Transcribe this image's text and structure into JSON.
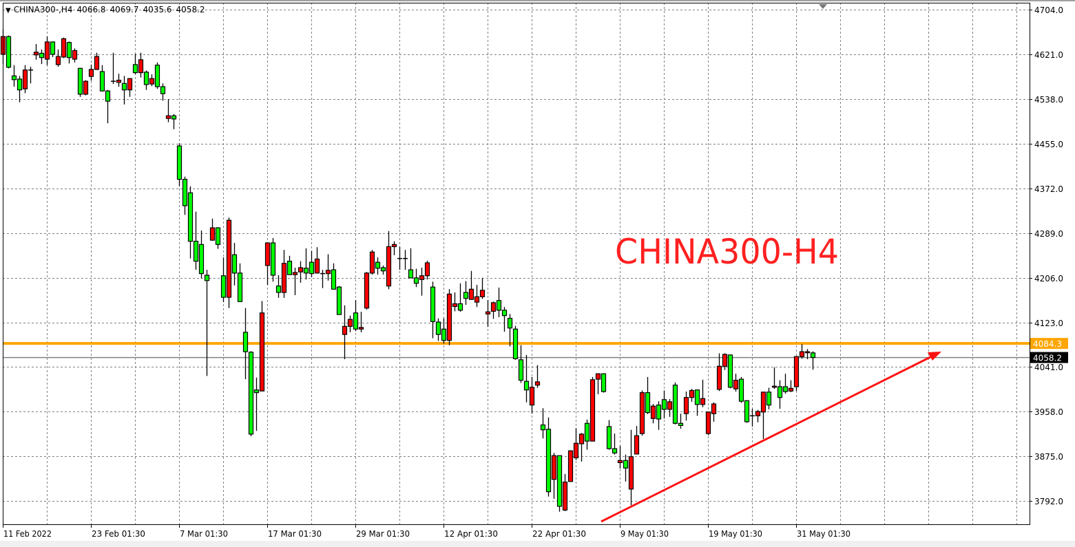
{
  "header": {
    "symbol": "CHINA300-,H4",
    "open": "4066.8",
    "high": "4069.7",
    "low": "4035.6",
    "close": "4058.2",
    "menu_icon": "triangle-down-icon"
  },
  "annotation": {
    "text": "CHINA300-H4",
    "color": "#FF2020"
  },
  "colors": {
    "bull": "#FF0000",
    "bear": "#00FF00",
    "outline": "#000000",
    "grid": "#7f7f7f",
    "level_line": "#FFA500",
    "bid_line": "#808080",
    "trend_arrow": "#FF1010",
    "bid_label_bg": "#000000"
  },
  "chart_data": {
    "type": "candlestick",
    "title": "",
    "grid": true,
    "y_axis": {
      "position": "right",
      "range": [
        3792,
        4704
      ],
      "ticks": [
        4704,
        4621,
        4538,
        4455,
        4372,
        4289,
        4206,
        4123,
        4041,
        3958,
        3875,
        3792
      ],
      "tick_labels": [
        "4704.0",
        "4621.0",
        "4538.0",
        "4455.0",
        "4372.0",
        "4289.0",
        "4206.0",
        "4123.0",
        "4041.0",
        "3958.0",
        "3875.0",
        "3792.0"
      ]
    },
    "x_axis": {
      "tick_labels": [
        "11 Feb 2022",
        "23 Feb 01:30",
        "7 Mar 01:30",
        "17 Mar 01:30",
        "29 Mar 01:30",
        "12 Apr 01:30",
        "22 Apr 01:30",
        "9 May 01:30",
        "19 May 01:30",
        "31 May 01:30"
      ]
    },
    "horizontal_level": {
      "price": 4084.3,
      "label": "4084.3"
    },
    "bid_line": {
      "price": 4058.2,
      "label": "4058.2"
    },
    "ohlc_fields": [
      "open",
      "high",
      "low",
      "close"
    ],
    "candles": [
      [
        4621,
        4668,
        4603,
        4654
      ],
      [
        4654,
        4656,
        4595,
        4597
      ],
      [
        4581,
        4601,
        4561,
        4574
      ],
      [
        4575,
        4581,
        4532,
        4555
      ],
      [
        4557,
        4601,
        4549,
        4592
      ],
      [
        4591,
        4598,
        4567,
        4592
      ],
      [
        4620,
        4640,
        4611,
        4625
      ],
      [
        4623,
        4630,
        4603,
        4615
      ],
      [
        4612,
        4654,
        4601,
        4644
      ],
      [
        4644,
        4645,
        4616,
        4621
      ],
      [
        4602,
        4630,
        4598,
        4617
      ],
      [
        4616,
        4652,
        4614,
        4650
      ],
      [
        4643,
        4645,
        4604,
        4615
      ],
      [
        4612,
        4632,
        4606,
        4628
      ],
      [
        4595,
        4596,
        4542,
        4547
      ],
      [
        4547,
        4573,
        4545,
        4571
      ],
      [
        4580,
        4602,
        4572,
        4593
      ],
      [
        4593,
        4624,
        4592,
        4617
      ],
      [
        4589,
        4601,
        4552,
        4553
      ],
      [
        4553,
        4555,
        4493,
        4534
      ],
      [
        4571,
        4624,
        4566,
        4570
      ],
      [
        4569,
        4585,
        4561,
        4573
      ],
      [
        4567,
        4581,
        4528,
        4555
      ],
      [
        4555,
        4577,
        4542,
        4576
      ],
      [
        4602,
        4622,
        4584,
        4587
      ],
      [
        4587,
        4624,
        4578,
        4611
      ],
      [
        4588,
        4591,
        4555,
        4565
      ],
      [
        4566,
        4584,
        4562,
        4576
      ],
      [
        4601,
        4606,
        4557,
        4561
      ],
      [
        4561,
        4567,
        4535,
        4548
      ],
      [
        4502,
        4538,
        4495,
        4507
      ],
      [
        4507,
        4510,
        4482,
        4501
      ],
      [
        4451,
        4456,
        4376,
        4389
      ],
      [
        4389,
        4394,
        4323,
        4340
      ],
      [
        4364,
        4376,
        4242,
        4274
      ],
      [
        4274,
        4329,
        4221,
        4237
      ],
      [
        4268,
        4294,
        4205,
        4214
      ],
      [
        4211,
        4221,
        4024,
        4201
      ],
      [
        4276,
        4316,
        4275,
        4299
      ],
      [
        4299,
        4300,
        4260,
        4268
      ],
      [
        4210,
        4244,
        4161,
        4170
      ],
      [
        4170,
        4318,
        4150,
        4313
      ],
      [
        4249,
        4271,
        4192,
        4215
      ],
      [
        4215,
        4233,
        4162,
        4162
      ],
      [
        4105,
        4150,
        4018,
        4069
      ],
      [
        4068,
        4070,
        3912,
        3916
      ],
      [
        3998,
        4021,
        3922,
        3993
      ],
      [
        3996,
        4163,
        3996,
        4141
      ],
      [
        4229,
        4272,
        4193,
        4271
      ],
      [
        4271,
        4280,
        4199,
        4211
      ],
      [
        4191,
        4211,
        4169,
        4179
      ],
      [
        4179,
        4258,
        4169,
        4233
      ],
      [
        4237,
        4247,
        4212,
        4212
      ],
      [
        4212,
        4225,
        4174,
        4216
      ],
      [
        4217,
        4237,
        4197,
        4225
      ],
      [
        4224,
        4261,
        4203,
        4215
      ],
      [
        4235,
        4256,
        4207,
        4214
      ],
      [
        4215,
        4263,
        4214,
        4241
      ],
      [
        4214,
        4221,
        4187,
        4214
      ],
      [
        4214,
        4250,
        4201,
        4220
      ],
      [
        4221,
        4233,
        4185,
        4185
      ],
      [
        4189,
        4191,
        4138,
        4138
      ],
      [
        4101,
        4155,
        4055,
        4116
      ],
      [
        4116,
        4136,
        4105,
        4129
      ],
      [
        4141,
        4165,
        4107,
        4111
      ],
      [
        4111,
        4143,
        4105,
        4114
      ],
      [
        4150,
        4217,
        4147,
        4215
      ],
      [
        4215,
        4258,
        4212,
        4254
      ],
      [
        4235,
        4244,
        4212,
        4224
      ],
      [
        4225,
        4229,
        4212,
        4219
      ],
      [
        4191,
        4293,
        4185,
        4264
      ],
      [
        4264,
        4274,
        4248,
        4268
      ],
      [
        4242,
        4264,
        4221,
        4242
      ],
      [
        4242,
        4258,
        4221,
        4242
      ],
      [
        4221,
        4261,
        4206,
        4206
      ],
      [
        4206,
        4223,
        4189,
        4196
      ],
      [
        4203,
        4225,
        4173,
        4210
      ],
      [
        4210,
        4238,
        4203,
        4234
      ],
      [
        4189,
        4199,
        4094,
        4125
      ],
      [
        4124,
        4131,
        4089,
        4101
      ],
      [
        4111,
        4131,
        4084,
        4090
      ],
      [
        4090,
        4185,
        4081,
        4176
      ],
      [
        4153,
        4179,
        4144,
        4158
      ],
      [
        4158,
        4196,
        4143,
        4146
      ],
      [
        4179,
        4200,
        4156,
        4168
      ],
      [
        4166,
        4219,
        4166,
        4185
      ],
      [
        4161,
        4193,
        4152,
        4171
      ],
      [
        4171,
        4206,
        4167,
        4183
      ],
      [
        4139,
        4165,
        4115,
        4143
      ],
      [
        4144,
        4162,
        4130,
        4160
      ],
      [
        4164,
        4188,
        4133,
        4146
      ],
      [
        4146,
        4152,
        4106,
        4136
      ],
      [
        4131,
        4139,
        4079,
        4113
      ],
      [
        4111,
        4117,
        4054,
        4056
      ],
      [
        4054,
        4081,
        4011,
        4016
      ],
      [
        4014,
        4063,
        3975,
        3998
      ],
      [
        3970,
        4022,
        3954,
        4003
      ],
      [
        4007,
        4044,
        4002,
        4013
      ],
      [
        3933,
        3964,
        3908,
        3924
      ],
      [
        3925,
        3947,
        3800,
        3809
      ],
      [
        3832,
        3881,
        3796,
        3876
      ],
      [
        3876,
        3876,
        3772,
        3782
      ],
      [
        3775,
        3842,
        3773,
        3827
      ],
      [
        3828,
        3886,
        3828,
        3885
      ],
      [
        3872,
        3927,
        3868,
        3899
      ],
      [
        3898,
        3918,
        3865,
        3916
      ],
      [
        3936,
        3943,
        3887,
        3903
      ],
      [
        3903,
        4022,
        3903,
        4017
      ],
      [
        4018,
        4029,
        3990,
        4028
      ],
      [
        4028,
        4029,
        3993,
        3995
      ],
      [
        3930,
        3942,
        3887,
        3889
      ],
      [
        3889,
        3917,
        3878,
        3881
      ],
      [
        3863,
        3894,
        3852,
        3867
      ],
      [
        3867,
        3878,
        3828,
        3853
      ],
      [
        3814,
        3924,
        3784,
        3874
      ],
      [
        3879,
        3931,
        3879,
        3913
      ],
      [
        3917,
        3997,
        3913,
        3993
      ],
      [
        3993,
        4022,
        3953,
        3956
      ],
      [
        3945,
        3972,
        3936,
        3968
      ],
      [
        3970,
        3977,
        3924,
        3944
      ],
      [
        3980,
        3997,
        3945,
        3962
      ],
      [
        3962,
        3981,
        3948,
        3976
      ],
      [
        4007,
        4012,
        3934,
        3936
      ],
      [
        3936,
        3954,
        3926,
        3932
      ],
      [
        3954,
        3995,
        3941,
        3984
      ],
      [
        3984,
        4000,
        3976,
        3997
      ],
      [
        3998,
        3998,
        3950,
        3971
      ],
      [
        3971,
        4017,
        3966,
        3982
      ],
      [
        3917,
        3957,
        3914,
        3957
      ],
      [
        3954,
        3975,
        3939,
        3972
      ],
      [
        3999,
        4066,
        3996,
        4042
      ],
      [
        4042,
        4066,
        4035,
        4064
      ],
      [
        4063,
        4063,
        4001,
        4003
      ],
      [
        4000,
        4028,
        3995,
        4016
      ],
      [
        4018,
        4022,
        3974,
        3977
      ],
      [
        3978,
        3979,
        3937,
        3939
      ],
      [
        3950,
        3963,
        3930,
        3949
      ],
      [
        3950,
        3961,
        3938,
        3958
      ],
      [
        3957,
        3994,
        3907,
        3994
      ],
      [
        3994,
        4002,
        3962,
        3970
      ],
      [
        4003,
        4040,
        4000,
        4005
      ],
      [
        4004,
        4016,
        3963,
        3984
      ],
      [
        4004,
        4028,
        3991,
        3995
      ],
      [
        3996,
        4016,
        3994,
        4001
      ],
      [
        4004,
        4060,
        3996,
        4060
      ],
      [
        4060,
        4083,
        4056,
        4069
      ],
      [
        4067,
        4074,
        4055,
        4069
      ],
      [
        4066.8,
        4069.7,
        4035.6,
        4058.2
      ]
    ]
  }
}
